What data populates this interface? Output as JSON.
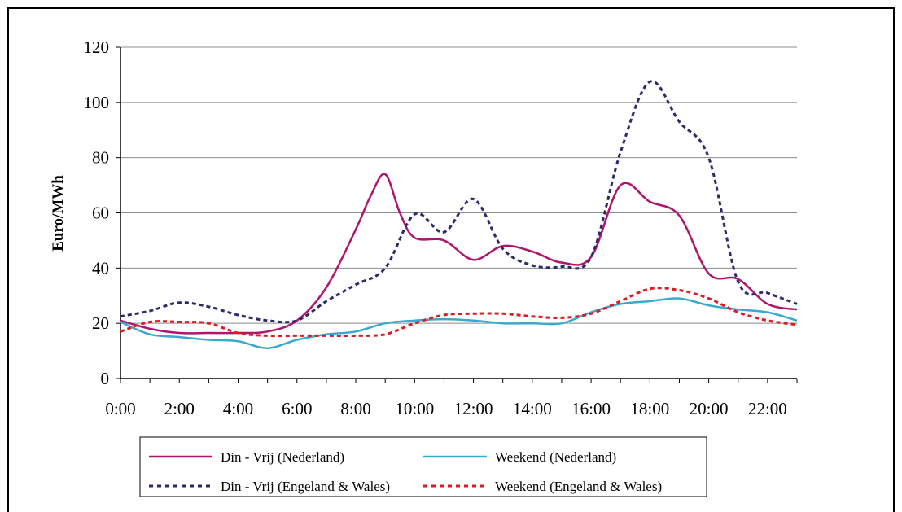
{
  "chart_data": {
    "type": "line",
    "title": "",
    "xlabel": "",
    "ylabel": "Euro/MWh",
    "ylim": [
      0,
      120
    ],
    "yticks": [
      "0",
      "20",
      "40",
      "60",
      "80",
      "100",
      "120"
    ],
    "xlim": [
      0,
      23
    ],
    "xticks": [
      "0:00",
      "2:00",
      "4:00",
      "6:00",
      "8:00",
      "10:00",
      "12:00",
      "14:00",
      "16:00",
      "18:00",
      "20:00",
      "22:00"
    ],
    "grid": true,
    "legend_position": "bottom",
    "series": [
      {
        "name": "Din - Vrij (Nederland)",
        "color": "#b0156e",
        "style": "solid",
        "points": [
          [
            0,
            21
          ],
          [
            1,
            18
          ],
          [
            2,
            16.5
          ],
          [
            3,
            16.5
          ],
          [
            4,
            16.5
          ],
          [
            5,
            17
          ],
          [
            6,
            21
          ],
          [
            7,
            33
          ],
          [
            8,
            54
          ],
          [
            8.5,
            66
          ],
          [
            9,
            74
          ],
          [
            9.5,
            60
          ],
          [
            10,
            51
          ],
          [
            11,
            50
          ],
          [
            12,
            43
          ],
          [
            13,
            48
          ],
          [
            14,
            46
          ],
          [
            15,
            42
          ],
          [
            16,
            44
          ],
          [
            17,
            70
          ],
          [
            18,
            64
          ],
          [
            19,
            59
          ],
          [
            20,
            38
          ],
          [
            21,
            36
          ],
          [
            22,
            27
          ],
          [
            23,
            25
          ]
        ]
      },
      {
        "name": "Weekend (Nederland)",
        "color": "#3aa9cf",
        "style": "solid",
        "points": [
          [
            0,
            20.5
          ],
          [
            1,
            16
          ],
          [
            2,
            15
          ],
          [
            3,
            14
          ],
          [
            4,
            13.5
          ],
          [
            5,
            11
          ],
          [
            6,
            14
          ],
          [
            7,
            16
          ],
          [
            8,
            17
          ],
          [
            9,
            20
          ],
          [
            10,
            21
          ],
          [
            11,
            21.5
          ],
          [
            12,
            21
          ],
          [
            13,
            20
          ],
          [
            14,
            20
          ],
          [
            15,
            20
          ],
          [
            16,
            24
          ],
          [
            17,
            27
          ],
          [
            18,
            28
          ],
          [
            19,
            29
          ],
          [
            20,
            26.5
          ],
          [
            21,
            25
          ],
          [
            22,
            24
          ],
          [
            23,
            21
          ]
        ]
      },
      {
        "name": "Din - Vrij (Engeland & Wales)",
        "color": "#2b2a6b",
        "style": "dotted",
        "points": [
          [
            0,
            22.5
          ],
          [
            1,
            24.5
          ],
          [
            2,
            27.5
          ],
          [
            3,
            26
          ],
          [
            4,
            23
          ],
          [
            5,
            21
          ],
          [
            6,
            21
          ],
          [
            7,
            28
          ],
          [
            8,
            34
          ],
          [
            9,
            40
          ],
          [
            10,
            59.5
          ],
          [
            11,
            53
          ],
          [
            12,
            65
          ],
          [
            13,
            47
          ],
          [
            14,
            41
          ],
          [
            15,
            40.5
          ],
          [
            16,
            44
          ],
          [
            17,
            82
          ],
          [
            18,
            107.5
          ],
          [
            19,
            93
          ],
          [
            20,
            80
          ],
          [
            21,
            35
          ],
          [
            22,
            31
          ],
          [
            23,
            27
          ]
        ]
      },
      {
        "name": "Weekend (Engeland & Wales)",
        "color": "#e01a22",
        "style": "dotted",
        "points": [
          [
            0,
            17
          ],
          [
            1,
            20.5
          ],
          [
            2,
            20.5
          ],
          [
            3,
            20
          ],
          [
            4,
            16.5
          ],
          [
            5,
            15.5
          ],
          [
            6,
            15.5
          ],
          [
            7,
            15.5
          ],
          [
            8,
            15.5
          ],
          [
            9,
            16
          ],
          [
            10,
            20
          ],
          [
            11,
            23
          ],
          [
            12,
            23.5
          ],
          [
            13,
            23.5
          ],
          [
            14,
            22.5
          ],
          [
            15,
            22
          ],
          [
            16,
            23.5
          ],
          [
            17,
            28
          ],
          [
            18,
            32.5
          ],
          [
            19,
            32
          ],
          [
            20,
            29
          ],
          [
            21,
            24
          ],
          [
            22,
            21
          ],
          [
            23,
            19.5
          ]
        ]
      }
    ]
  }
}
